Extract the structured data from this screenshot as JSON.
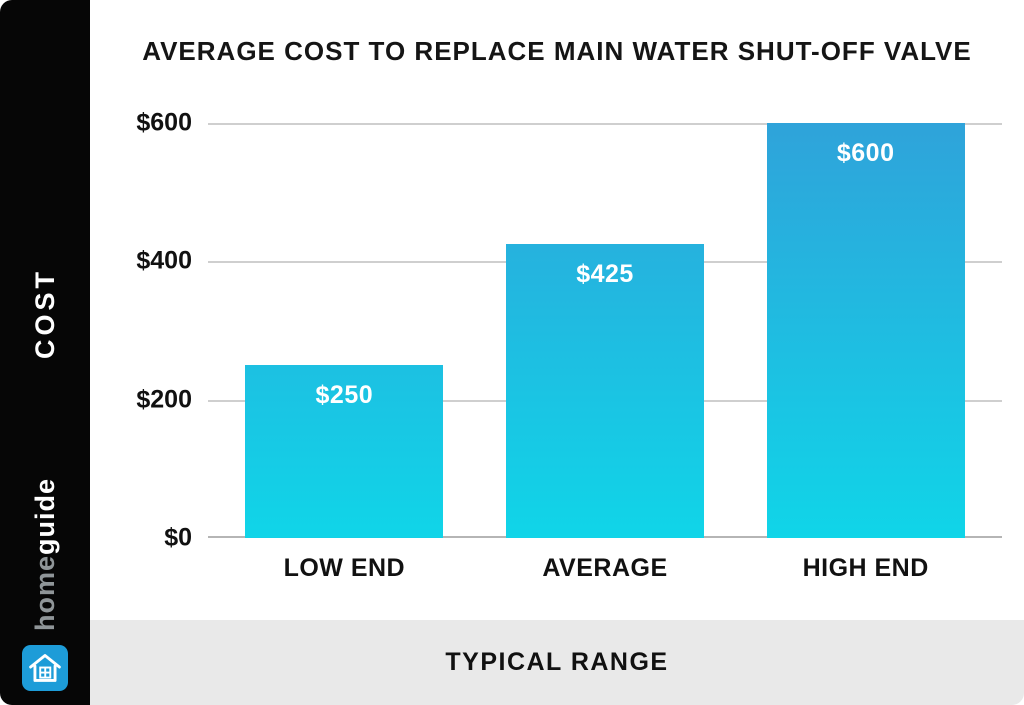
{
  "sidebar": {
    "cost_label": "COST",
    "brand_home": "home",
    "brand_guide": "guide"
  },
  "header": {
    "title": "AVERAGE COST TO REPLACE MAIN WATER SHUT-OFF VALVE"
  },
  "footer": {
    "label": "TYPICAL RANGE"
  },
  "colors": {
    "bar_gradient_top": "#2fa3da",
    "bar_gradient_bottom": "#10d5e8",
    "sidebar_bg": "#060606",
    "footer_bg": "#e9e9e9",
    "logo_bg": "#1d9cd8"
  },
  "chart_data": {
    "type": "bar",
    "title": "AVERAGE COST TO REPLACE MAIN WATER SHUT-OFF VALVE",
    "categories": [
      "LOW END",
      "AVERAGE",
      "HIGH END"
    ],
    "values": [
      250,
      425,
      600
    ],
    "value_labels": [
      "$250",
      "$425",
      "$600"
    ],
    "xlabel": "TYPICAL RANGE",
    "ylabel": "COST",
    "ylim": [
      0,
      600
    ],
    "yticks": [
      0,
      200,
      400,
      600
    ],
    "ytick_labels": [
      "$0",
      "$200",
      "$400",
      "$600"
    ],
    "grid": "horizontal",
    "legend": "none"
  }
}
